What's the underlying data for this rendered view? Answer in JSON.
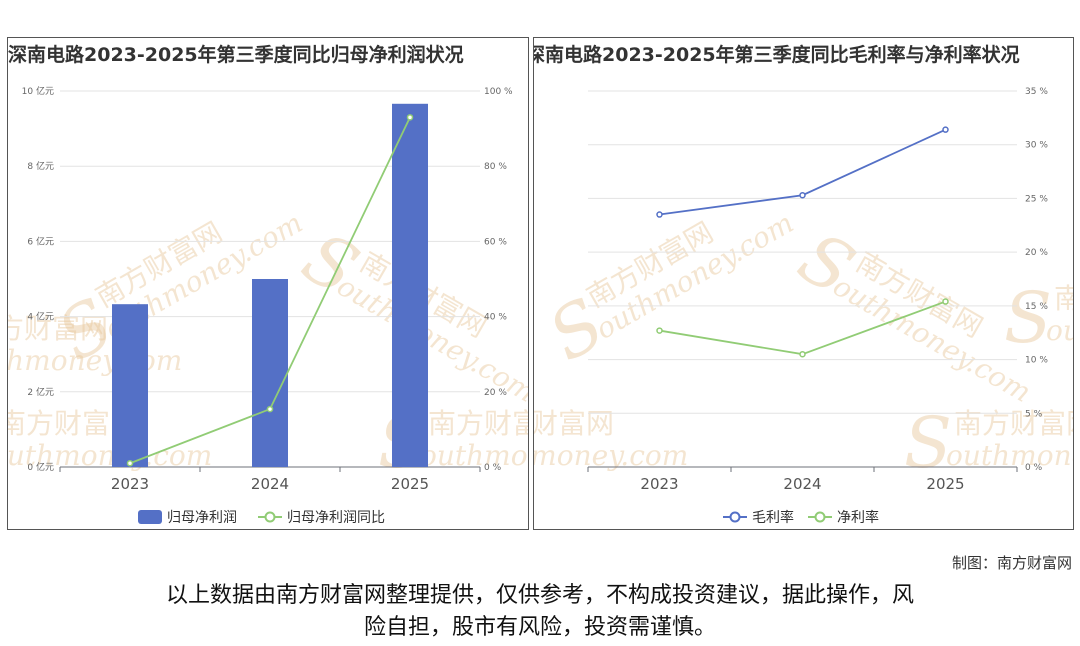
{
  "chart_data": [
    {
      "type": "bar",
      "title": "深南电路2023-2025年第三季度同比归母净利润状况",
      "categories": [
        "2023",
        "2024",
        "2025"
      ],
      "series": [
        {
          "name": "归母净利润",
          "type": "bar",
          "axis": "left",
          "values": [
            4.33,
            5.0,
            9.66
          ],
          "color": "#5470c6"
        },
        {
          "name": "归母净利润同比",
          "type": "line",
          "axis": "right",
          "values": [
            1,
            15.4,
            93
          ],
          "color": "#91cc75"
        }
      ],
      "y_left": {
        "ticks": [
          "0 亿元",
          "2 亿元",
          "4 亿元",
          "6 亿元",
          "8 亿元",
          "10 亿元"
        ],
        "ylim": [
          0,
          10
        ]
      },
      "y_right": {
        "ticks": [
          "0 %",
          "20 %",
          "40 %",
          "60 %",
          "80 %",
          "100 %"
        ],
        "ylim": [
          0,
          100
        ]
      },
      "legend_position": "bottom"
    },
    {
      "type": "line",
      "title": "深南电路2023-2025年第三季度同比毛利率与净利率状况",
      "categories": [
        "2023",
        "2024",
        "2025"
      ],
      "series": [
        {
          "name": "毛利率",
          "values": [
            23.5,
            25.3,
            31.4
          ],
          "color": "#5470c6"
        },
        {
          "name": "净利率",
          "values": [
            12.7,
            10.5,
            15.4
          ],
          "color": "#91cc75"
        }
      ],
      "y_right": {
        "ticks": [
          "0 %",
          "5 %",
          "10 %",
          "15 %",
          "20 %",
          "25 %",
          "30 %",
          "35 %"
        ],
        "ylim": [
          0,
          35
        ]
      },
      "legend_position": "bottom"
    }
  ],
  "watermark": {
    "cn": "南方财富网",
    "en": "outhmoney.com",
    "s": "S"
  },
  "footer": {
    "credit": "制图：南方财富网",
    "disclaimer_line1": "以上数据由南方财富网整理提供，仅供参考，不构成投资建议，据此操作，风",
    "disclaimer_line2": "险自担，股市有风险，投资需谨慎。"
  }
}
